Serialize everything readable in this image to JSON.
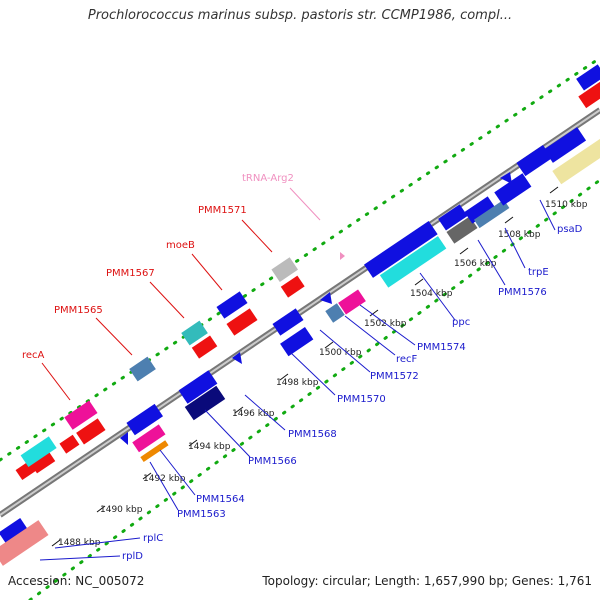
{
  "title": "Prochlorococcus marinus subsp. pastoris str. CCMP1986, compl...",
  "accession": "Accession: NC_005072",
  "summary": "Topology: circular; Length: 1,657,990 bp; Genes: 1,761",
  "colors": {
    "forward": "#1010e0",
    "reverse": "#ee1111",
    "navy": "#0a0a7a",
    "magenta": "#ee1199",
    "cyan": "#22dddd",
    "teal": "#33bbbb",
    "steel": "#4d7fb0",
    "gray": "#bbbbbb",
    "darkgray": "#666666",
    "orange": "#ee8800",
    "khaki": "#eee4a0",
    "salmon": "#ee8888",
    "blue_label": "#1a1acc",
    "red_label": "#dd1111",
    "pink_label": "#f090c0",
    "backbone": "#888888",
    "tick_dots": "#11aa11"
  },
  "ticks": [
    {
      "label": "1488 kbp"
    },
    {
      "label": "1490 kbp"
    },
    {
      "label": "1492 kbp"
    },
    {
      "label": "1494 kbp"
    },
    {
      "label": "1496 kbp"
    },
    {
      "label": "1498 kbp"
    },
    {
      "label": "1500 kbp"
    },
    {
      "label": "1502 kbp"
    },
    {
      "label": "1504 kbp"
    },
    {
      "label": "1506 kbp"
    },
    {
      "label": "1508 kbp"
    },
    {
      "label": "1510 kbp"
    }
  ],
  "gene_labels": {
    "recA": "recA",
    "PMM1565": "PMM1565",
    "PMM1567": "PMM1567",
    "moeB": "moeB",
    "PMM1571": "PMM1571",
    "tRNA_Arg2": "tRNA-Arg2",
    "psaD": "psaD",
    "trpE": "trpE",
    "PMM1576": "PMM1576",
    "ppc": "ppc",
    "PMM1574": "PMM1574",
    "recF": "recF",
    "PMM1572": "PMM1572",
    "PMM1570": "PMM1570",
    "PMM1568": "PMM1568",
    "PMM1566": "PMM1566",
    "PMM1564": "PMM1564",
    "PMM1563": "PMM1563",
    "rplC": "rplC",
    "rplD": "rplD"
  }
}
